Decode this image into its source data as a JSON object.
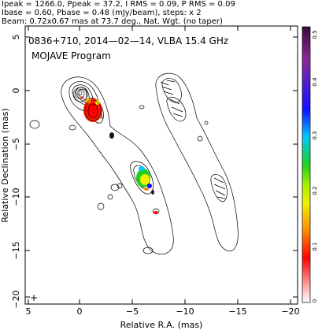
{
  "header": {
    "line1": "Ipeak = 1266.0, Ppeak = 37.2, I RMS = 0.09, P RMS = 0.09",
    "line2": "Ibase = 0.60, Pbase = 0.48 (mJy/beam), steps: x 2",
    "line3": "Beam: 0.72x0.67 mas at 73.7 deg., Nat. Wgt. (no taper)"
  },
  "plot": {
    "title_line1": "0836+710, 2014—02—14, VLBA 15.4 GHz",
    "title_line2": "MOJAVE Program",
    "xlabel": "Relative R.A. (mas)",
    "ylabel": "Relative Declination (mas)",
    "x_ticks": [
      "5",
      "0",
      "−5",
      "−10",
      "−15",
      "−20"
    ],
    "y_ticks": [
      "5",
      "0",
      "−5",
      "−10",
      "−15",
      "−20"
    ],
    "colorbar_ticks": [
      "0.5",
      "0.4",
      "0.3",
      "0.2",
      "0.1",
      "0"
    ],
    "xlim": [
      5,
      -21
    ],
    "ylim": [
      -21,
      6
    ],
    "colorbar_range": [
      0,
      0.5
    ],
    "beam_marker": "+",
    "colors": {
      "colorbar_top": "#3a0a3a",
      "colorbar_blue": "#1010ff",
      "colorbar_green": "#20d020",
      "colorbar_yellow": "#f0f000",
      "colorbar_red": "#ff0000",
      "colorbar_bottom": "#ffffff"
    }
  }
}
